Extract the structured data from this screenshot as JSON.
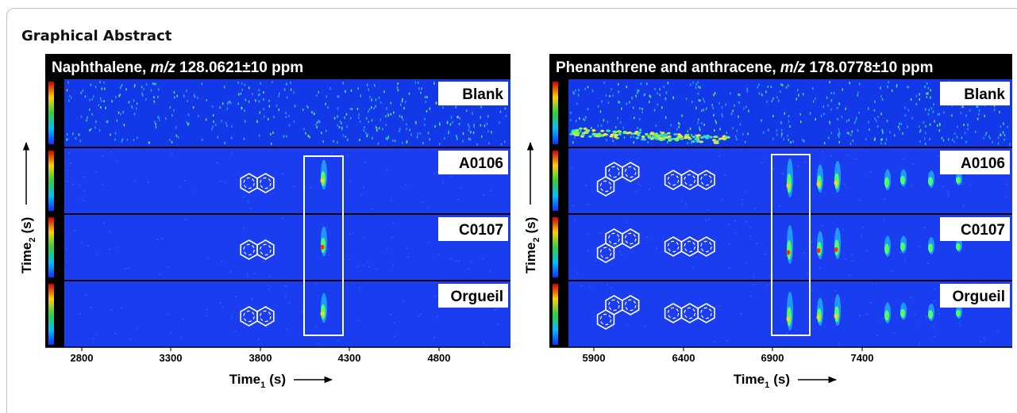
{
  "header": {
    "title": "Graphical Abstract"
  },
  "panels": [
    {
      "title": {
        "compound": "Naphthalene,",
        "mz_label": "m/z",
        "mz_value": "128.0621±10 ppm"
      },
      "samples": [
        "Blank",
        "A0106",
        "C0107",
        "Orgueil"
      ],
      "x_ticks": [
        "2800",
        "3300",
        "3800",
        "4300",
        "4800"
      ],
      "x_axis": {
        "label": "Time",
        "subscript": "1",
        "unit": "(s)"
      },
      "y_axis": {
        "label": "Time",
        "subscript": "2",
        "unit": "(s)"
      }
    },
    {
      "title": {
        "compound": "Phenanthrene and anthracene,",
        "mz_label": "m/z",
        "mz_value": "178.0778±10 ppm"
      },
      "samples": [
        "Blank",
        "A0106",
        "C0107",
        "Orgueil"
      ],
      "x_ticks": [
        "5900",
        "6400",
        "6900",
        "7400"
      ],
      "x_axis": {
        "label": "Time",
        "subscript": "1",
        "unit": "(s)"
      },
      "y_axis": {
        "label": "Time",
        "subscript": "2",
        "unit": "(s)"
      }
    }
  ]
}
